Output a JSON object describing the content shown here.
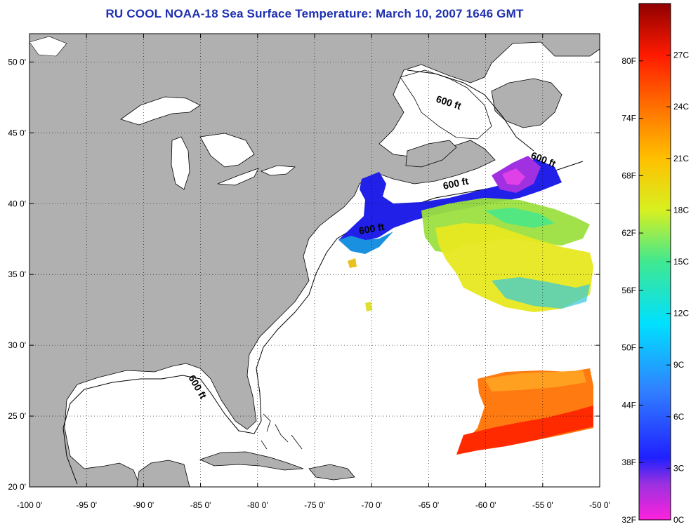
{
  "title": "RU COOL  NOAA-18  Sea Surface Temperature:  March 10, 2007 1646 GMT",
  "map": {
    "lon_range": [
      -100,
      -50
    ],
    "lat_range": [
      20,
      52
    ],
    "lon_ticks": [
      "-100 0'",
      "-95 0'",
      "-90 0'",
      "-85 0'",
      "-80 0'",
      "-75 0'",
      "-70 0'",
      "-65 0'",
      "-60 0'",
      "-55 0'",
      "-50 0'"
    ],
    "lat_ticks": [
      "20 0'",
      "25 0'",
      "30 0'",
      "35 0'",
      "40 0'",
      "45 0'",
      "50 0'"
    ],
    "contour_labels": [
      "600 ft",
      "600 ft",
      "600 ft",
      "600 ft",
      "600 ft"
    ],
    "colors": {
      "land": "#b0b0b0",
      "ocean": "#ffffff",
      "title": "#1e2fb0"
    }
  },
  "colorbar": {
    "fahrenheit": [
      "32F",
      "38F",
      "44F",
      "50F",
      "56F",
      "62F",
      "68F",
      "74F",
      "80F"
    ],
    "celsius": [
      "0C",
      "3C",
      "6C",
      "9C",
      "12C",
      "15C",
      "18C",
      "21C",
      "24C",
      "27C"
    ]
  }
}
